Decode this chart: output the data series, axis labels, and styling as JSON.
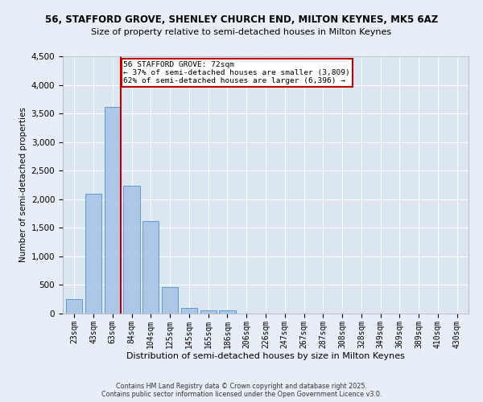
{
  "title1": "56, STAFFORD GROVE, SHENLEY CHURCH END, MILTON KEYNES, MK5 6AZ",
  "title2": "Size of property relative to semi-detached houses in Milton Keynes",
  "xlabel": "Distribution of semi-detached houses by size in Milton Keynes",
  "ylabel": "Number of semi-detached properties",
  "categories": [
    "23sqm",
    "43sqm",
    "63sqm",
    "84sqm",
    "104sqm",
    "125sqm",
    "145sqm",
    "165sqm",
    "186sqm",
    "206sqm",
    "226sqm",
    "247sqm",
    "267sqm",
    "287sqm",
    "308sqm",
    "328sqm",
    "349sqm",
    "369sqm",
    "389sqm",
    "410sqm",
    "430sqm"
  ],
  "values": [
    250,
    2100,
    3620,
    2230,
    1620,
    460,
    95,
    50,
    50,
    0,
    0,
    0,
    0,
    0,
    0,
    0,
    0,
    0,
    0,
    0,
    0
  ],
  "bar_color": "#aec6e8",
  "bar_edge_color": "#5b9bd5",
  "highlight_bar_index": 2,
  "highlight_color": "#c00000",
  "property_label": "56 STAFFORD GROVE: 72sqm",
  "annotation_line1": "← 37% of semi-detached houses are smaller (3,809)",
  "annotation_line2": "62% of semi-detached houses are larger (6,396) →",
  "ylim": [
    0,
    4500
  ],
  "yticks": [
    0,
    500,
    1000,
    1500,
    2000,
    2500,
    3000,
    3500,
    4000,
    4500
  ],
  "fig_bg_color": "#e8eef7",
  "plot_bg_color": "#dce6f1",
  "grid_color": "#ffffff",
  "footnote1": "Contains HM Land Registry data © Crown copyright and database right 2025.",
  "footnote2": "Contains public sector information licensed under the Open Government Licence v3.0."
}
